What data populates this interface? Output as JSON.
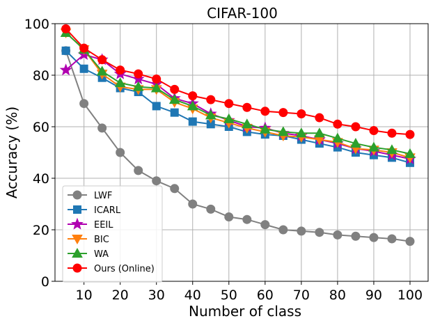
{
  "chart_data": {
    "type": "line",
    "title": "CIFAR-100",
    "xlabel": "Number of class",
    "ylabel": "Accuracy (%)",
    "xlim": [
      2,
      105
    ],
    "ylim": [
      0,
      100
    ],
    "xticks": [
      10,
      20,
      30,
      40,
      50,
      60,
      70,
      80,
      90,
      100
    ],
    "yticks": [
      0,
      20,
      40,
      60,
      80,
      100
    ],
    "grid": true,
    "legend_position": "lower-left",
    "x": [
      5,
      10,
      15,
      20,
      25,
      30,
      35,
      40,
      45,
      50,
      55,
      60,
      65,
      70,
      75,
      80,
      85,
      90,
      95,
      100
    ],
    "series": [
      {
        "name": "LWF",
        "color": "#808080",
        "marker": "circle",
        "values": [
          89.5,
          69,
          59.5,
          50,
          43,
          39,
          36,
          30,
          28,
          25,
          24,
          22,
          20,
          19.5,
          19,
          18,
          17.5,
          17,
          16.5,
          15.5
        ]
      },
      {
        "name": "ICARL",
        "color": "#1f77b4",
        "marker": "square",
        "values": [
          89.5,
          82.5,
          79,
          75,
          73.5,
          68,
          65.5,
          62,
          61,
          60,
          58,
          57,
          56.5,
          55,
          53.5,
          52,
          50,
          49,
          48,
          46
        ]
      },
      {
        "name": "EEIL",
        "color": "#b000b0",
        "marker": "star",
        "values": [
          82,
          88,
          86,
          80.5,
          78.5,
          76.5,
          71,
          69,
          65,
          62.5,
          60,
          59.5,
          57.5,
          56.5,
          55,
          53.5,
          51.5,
          50.5,
          49,
          47.5
        ]
      },
      {
        "name": "BIC",
        "color": "#ff7f0e",
        "marker": "triangle-down",
        "values": [
          96.5,
          90,
          80.5,
          75.5,
          74.5,
          74.5,
          69.5,
          67,
          63.5,
          61.5,
          59.5,
          58,
          56.5,
          56,
          55,
          54,
          51.5,
          51,
          50,
          48
        ]
      },
      {
        "name": "WA",
        "color": "#2ca02c",
        "marker": "triangle-up",
        "values": [
          96.5,
          90,
          81.5,
          77,
          75.5,
          75,
          70.5,
          68,
          64.5,
          63,
          61,
          59,
          58,
          57.5,
          57.5,
          55.5,
          53.5,
          52,
          51,
          49.5
        ]
      },
      {
        "name": "Ours (Online)",
        "color": "#ff0000",
        "marker": "circle",
        "values": [
          98,
          90.5,
          86,
          82,
          80.5,
          78.5,
          74.5,
          72,
          70.5,
          69,
          67.5,
          66,
          65.5,
          65,
          63.5,
          61,
          60,
          58.5,
          57.5,
          57
        ]
      }
    ]
  }
}
